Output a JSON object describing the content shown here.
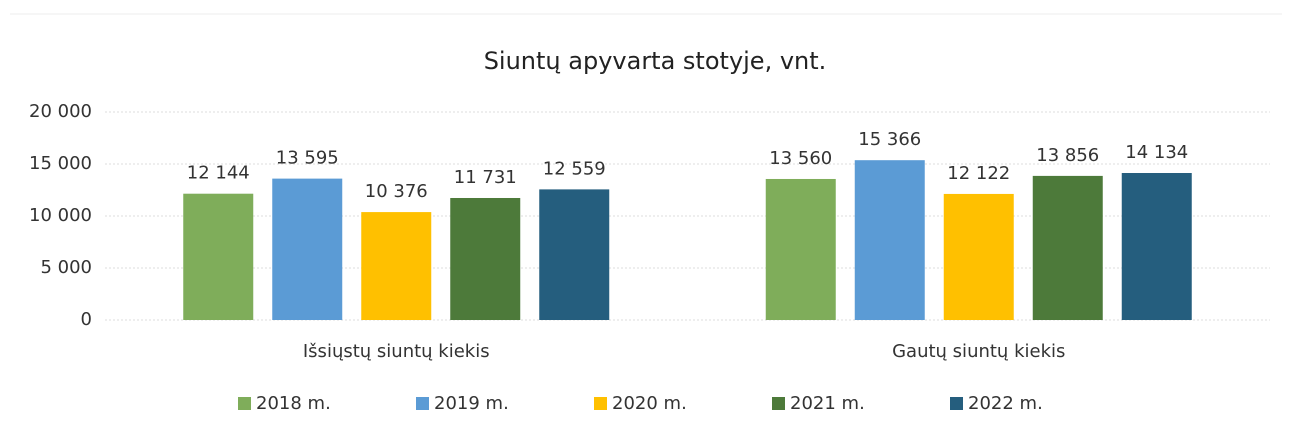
{
  "chart_data": {
    "type": "bar",
    "title": "Siuntų apyvarta stotyje, vnt.",
    "categories": [
      "Išsiųstų siuntų kiekis",
      "Gautų siuntų kiekis"
    ],
    "series": [
      {
        "name": "2018 m.",
        "color": "#7fad5a",
        "values": [
          12144,
          13560
        ],
        "value_labels": [
          "12 144",
          "13 560"
        ]
      },
      {
        "name": "2019 m.",
        "color": "#5b9bd5",
        "values": [
          13595,
          15366
        ],
        "value_labels": [
          "13 595",
          "15 366"
        ]
      },
      {
        "name": "2020 m.",
        "color": "#ffc000",
        "values": [
          10376,
          12122
        ],
        "value_labels": [
          "10 376",
          "12 122"
        ]
      },
      {
        "name": "2021 m.",
        "color": "#4d7a3a",
        "values": [
          11731,
          13856
        ],
        "value_labels": [
          "11 731",
          "13 856"
        ]
      },
      {
        "name": "2022 m.",
        "color": "#255e7e",
        "values": [
          12559,
          14134
        ],
        "value_labels": [
          "12 559",
          "14 134"
        ]
      }
    ],
    "ylim": [
      0,
      20000
    ],
    "yticks": [
      0,
      {
        "value": 5000,
        "label": "5 000"
      },
      {
        "value": 10000,
        "label": "10 000"
      },
      {
        "value": 15000,
        "label": "15 000"
      },
      {
        "value": 20000,
        "label": "20 000"
      }
    ],
    "grid": true,
    "legend": "bottom"
  }
}
